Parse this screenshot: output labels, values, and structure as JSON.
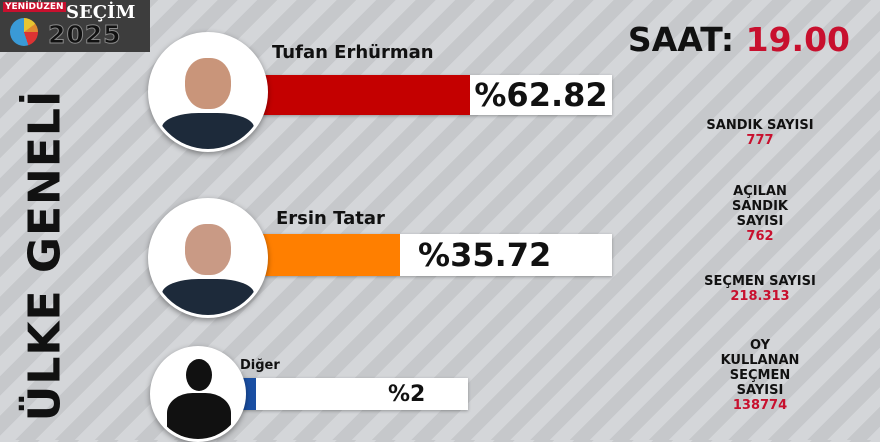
{
  "header": {
    "brand": "YENİDÜZEN",
    "title": "SEÇİM",
    "year": "2025",
    "time_label": "SAAT:",
    "time_value": "19.00"
  },
  "region_title": "ÜLKE GENELİ",
  "candidates": [
    {
      "name": "Tufan Erhürman",
      "percent_label": "%62.82",
      "percent": 62.82,
      "color": "#c40000"
    },
    {
      "name": "Ersin Tatar",
      "percent_label": "%35.72",
      "percent": 35.72,
      "color": "#ff7f00"
    },
    {
      "name": "Diğer",
      "percent_label": "%2",
      "percent": 2,
      "color": "#1a4fa3"
    }
  ],
  "stats": [
    {
      "label": "SANDIK SAYISI",
      "value": "777"
    },
    {
      "label": "AÇILAN SANDIK SAYISI",
      "value": "762"
    },
    {
      "label": "SEÇMEN SAYISI",
      "value": "218.313"
    },
    {
      "label": "OY KULLANAN SEÇMEN SAYISI",
      "value": "138774"
    }
  ]
}
